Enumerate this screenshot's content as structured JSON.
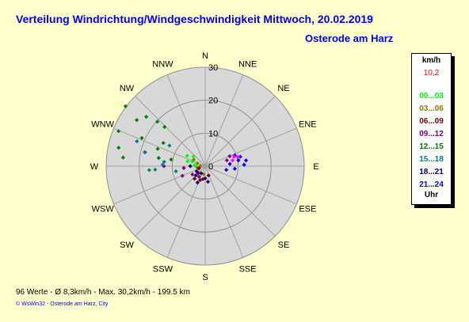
{
  "header": {
    "title": "Verteilung Windrichtung/Windgeschwindigkeit  Mittwoch, 20.02.2019",
    "location": "Osterode am Harz"
  },
  "legend": {
    "unit": "km/h",
    "max_value": "10,2",
    "max_color": "#ff0000",
    "items": [
      {
        "label": "00...03",
        "color": "#00ff00"
      },
      {
        "label": "03...06",
        "color": "#808000"
      },
      {
        "label": "06...09",
        "color": "#800000"
      },
      {
        "label": "09...12",
        "color": "#800080"
      },
      {
        "label": "12...15",
        "color": "#008000"
      },
      {
        "label": "15...18",
        "color": "#008080"
      },
      {
        "label": "18...21",
        "color": "#000080"
      },
      {
        "label": "21...24",
        "color": "#0000ff"
      }
    ],
    "footer": "Uhr"
  },
  "footer": {
    "stats": "96 Werte   -   Ø 8,3km/h   -   Max. 30,2km/h   -   199.5 km",
    "credit": "© WsWin32  -  Osterode am Harz, City"
  },
  "chart_data": {
    "type": "scatter",
    "subtype": "polar-wind",
    "r_unit": "km/h",
    "rmax": 30,
    "r_ticks": [
      {
        "value": 10,
        "label": "10"
      },
      {
        "value": 20,
        "label": "20"
      },
      {
        "value": 30,
        "label": "30"
      }
    ],
    "center_label": "0",
    "directions": [
      "N",
      "NNE",
      "NE",
      "ENE",
      "E",
      "ESE",
      "SE",
      "SSE",
      "S",
      "SSW",
      "SW",
      "WSW",
      "W",
      "WNW",
      "NW",
      "NNW"
    ],
    "series": [
      {
        "name": "00...03",
        "color": "#00ff00",
        "points": [
          {
            "dir": 285,
            "speed": 5.5
          },
          {
            "dir": 300,
            "speed": 6.3
          },
          {
            "dir": 290,
            "speed": 4.1
          },
          {
            "dir": 310,
            "speed": 4.6
          },
          {
            "dir": 275,
            "speed": 3.2
          }
        ]
      },
      {
        "name": "03...06",
        "color": "#808000",
        "points": [
          {
            "dir": 240,
            "speed": 3.0
          },
          {
            "dir": 260,
            "speed": 2.5
          },
          {
            "dir": 290,
            "speed": 2.5
          },
          {
            "dir": 300,
            "speed": 4.0
          },
          {
            "dir": 190,
            "speed": 2.5
          },
          {
            "dir": 270,
            "speed": 1.5
          }
        ]
      },
      {
        "name": "06...09",
        "color": "#800000",
        "points": [
          {
            "dir": 220,
            "speed": 5.0
          },
          {
            "dir": 200,
            "speed": 4.5
          },
          {
            "dir": 225,
            "speed": 3.0
          },
          {
            "dir": 250,
            "speed": 2.0
          },
          {
            "dir": 160,
            "speed": 3.0
          },
          {
            "dir": 190,
            "speed": 4.0
          }
        ]
      },
      {
        "name": "09...12",
        "color": "#800080",
        "points": [
          {
            "dir": 270,
            "speed": 12.5
          },
          {
            "dir": 283,
            "speed": 18.7
          },
          {
            "dir": 265,
            "speed": 6.5
          },
          {
            "dir": 247,
            "speed": 7.5
          },
          {
            "dir": 237,
            "speed": 4.6
          },
          {
            "dir": 68,
            "speed": 8.0
          },
          {
            "dir": 75,
            "speed": 6.8
          },
          {
            "dir": 210,
            "speed": 3.7
          }
        ]
      },
      {
        "name": "12...15",
        "color": "#008000",
        "points": [
          {
            "dir": 304,
            "speed": 25.0
          },
          {
            "dir": 310,
            "speed": 23.3
          },
          {
            "dir": 314,
            "speed": 17.1
          },
          {
            "dir": 292,
            "speed": 28.3
          },
          {
            "dir": 290,
            "speed": 15.3
          },
          {
            "dir": 282,
            "speed": 26.8
          },
          {
            "dir": 276,
            "speed": 25.0
          },
          {
            "dir": 280,
            "speed": 14.3
          },
          {
            "dir": 281,
            "speed": 10.5
          },
          {
            "dir": 307,
            "speed": 30.2
          },
          {
            "dir": 299,
            "speed": 14.5
          },
          {
            "dir": 313,
            "speed": 19.8
          },
          {
            "dir": 294,
            "speed": 21.0
          }
        ]
      },
      {
        "name": "15...18",
        "color": "#008080",
        "points": [
          {
            "dir": 283,
            "speed": 18.8
          },
          {
            "dir": 266,
            "speed": 17.0
          },
          {
            "dir": 272,
            "speed": 12.9
          },
          {
            "dir": 300,
            "speed": 12.5
          },
          {
            "dir": 266,
            "speed": 15.2
          },
          {
            "dir": 290,
            "speed": 22.0
          },
          {
            "dir": 276,
            "speed": 12.5
          },
          {
            "dir": 260,
            "speed": 9.0
          }
        ]
      },
      {
        "name": "18...21",
        "color": "#000080",
        "points": [
          {
            "dir": 225,
            "speed": 4.0
          },
          {
            "dir": 205,
            "speed": 5.5
          },
          {
            "dir": 180,
            "speed": 3.7
          },
          {
            "dir": 210,
            "speed": 2.5
          },
          {
            "dir": 170,
            "speed": 4.8
          },
          {
            "dir": 270,
            "speed": 4.5
          },
          {
            "dir": 237,
            "speed": 3.0
          }
        ]
      },
      {
        "name": "21...24",
        "color": "#0000ff",
        "points": [
          {
            "dir": 75,
            "speed": 11.0
          },
          {
            "dir": 82,
            "speed": 12.5
          },
          {
            "dir": 95,
            "speed": 9.0
          },
          {
            "dir": 80,
            "speed": 10.2
          },
          {
            "dir": 70,
            "speed": 9.5
          },
          {
            "dir": 100,
            "speed": 6.5
          },
          {
            "dir": 85,
            "speed": 7.5
          },
          {
            "dir": 88,
            "speed": 11.8
          }
        ]
      },
      {
        "name": "10,2",
        "color": "#ff00ff",
        "points": [
          {
            "dir": 72,
            "speed": 9.2
          },
          {
            "dir": 78,
            "speed": 8.5
          },
          {
            "dir": 74,
            "speed": 10.3
          }
        ]
      }
    ]
  }
}
